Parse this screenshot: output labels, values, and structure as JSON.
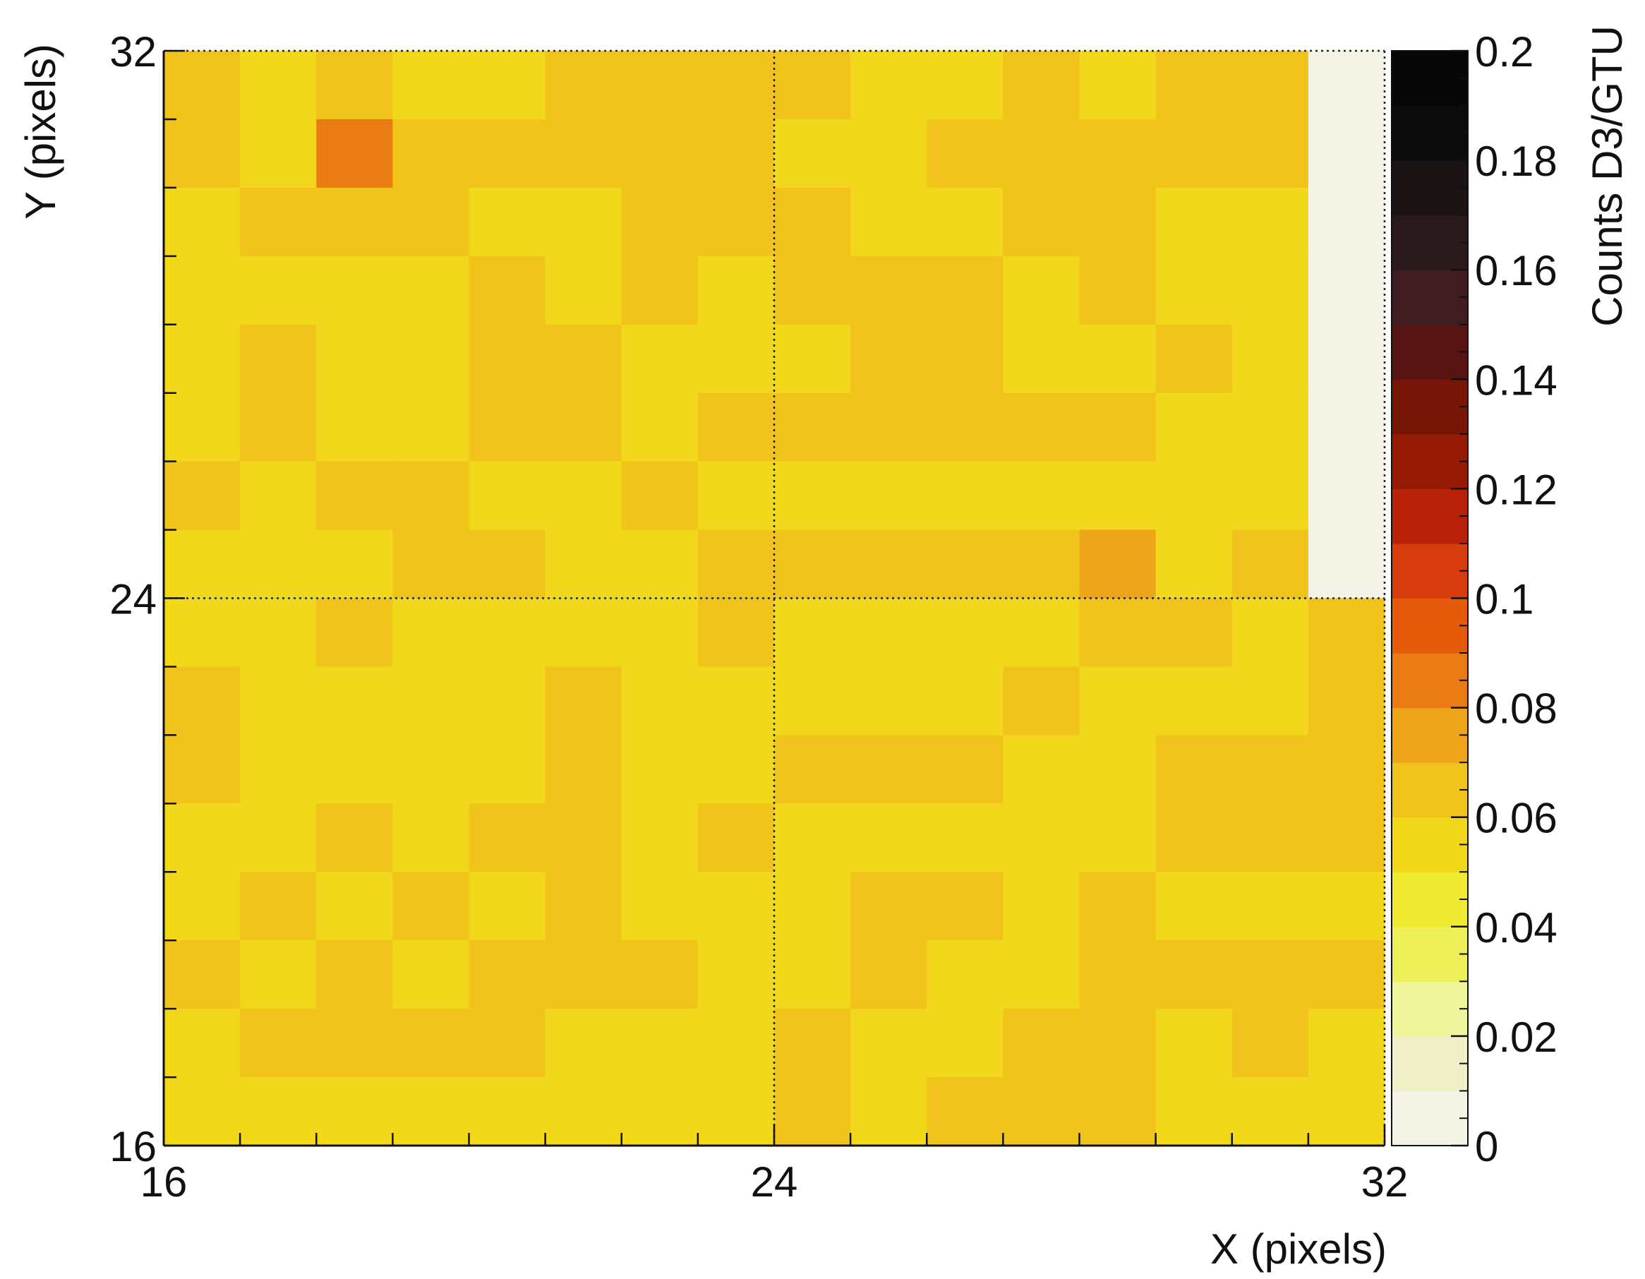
{
  "chart_data": {
    "type": "heatmap",
    "title": "",
    "xlabel": "X (pixels)",
    "ylabel": "Y (pixels)",
    "zlabel": "Counts D3/GTU",
    "xlim": [
      16,
      32
    ],
    "ylim": [
      16,
      32
    ],
    "zlim": [
      0,
      0.2
    ],
    "x_tick_labels": [
      "16",
      "24",
      "32"
    ],
    "y_tick_labels": [
      "16",
      "24",
      "32"
    ],
    "z_tick_labels": [
      "0",
      "0.02",
      "0.04",
      "0.06",
      "0.08",
      "0.1",
      "0.12",
      "0.14",
      "0.16",
      "0.18",
      "0.2"
    ],
    "grid": "dotted lines at 24",
    "colormap": [
      "#f5f3e6",
      "#f0f0c8",
      "#eef59a",
      "#eef05a",
      "#f0ea30",
      "#f2d81a",
      "#f0c41a",
      "#eea51a",
      "#ea7a12",
      "#e65a0c",
      "#d63c0c",
      "#b82208",
      "#961a06",
      "#761606",
      "#561412",
      "#3e1c20",
      "#2a1a1c",
      "#1a1414",
      "#0d0c0c",
      "#060606"
    ],
    "cell_values_rows_top_to_bottom": [
      [
        0.062,
        0.057,
        0.062,
        0.057,
        0.057,
        0.062,
        0.062,
        0.062,
        0.062,
        0.057,
        0.057,
        0.062,
        0.057,
        0.062,
        0.062,
        0.0
      ],
      [
        0.062,
        0.057,
        0.088,
        0.062,
        0.062,
        0.062,
        0.062,
        0.062,
        0.057,
        0.057,
        0.062,
        0.062,
        0.062,
        0.062,
        0.062,
        0.0
      ],
      [
        0.057,
        0.062,
        0.062,
        0.062,
        0.057,
        0.057,
        0.062,
        0.062,
        0.062,
        0.057,
        0.057,
        0.062,
        0.062,
        0.057,
        0.057,
        0.0
      ],
      [
        0.057,
        0.057,
        0.057,
        0.057,
        0.062,
        0.057,
        0.062,
        0.057,
        0.062,
        0.062,
        0.062,
        0.057,
        0.062,
        0.05,
        0.057,
        0.0
      ],
      [
        0.057,
        0.062,
        0.057,
        0.057,
        0.062,
        0.062,
        0.057,
        0.057,
        0.057,
        0.062,
        0.062,
        0.057,
        0.057,
        0.062,
        0.057,
        0.0
      ],
      [
        0.057,
        0.062,
        0.057,
        0.057,
        0.062,
        0.062,
        0.057,
        0.062,
        0.062,
        0.062,
        0.062,
        0.062,
        0.062,
        0.057,
        0.057,
        0.0
      ],
      [
        0.062,
        0.057,
        0.062,
        0.062,
        0.057,
        0.057,
        0.062,
        0.057,
        0.057,
        0.057,
        0.057,
        0.057,
        0.057,
        0.057,
        0.057,
        0.0
      ],
      [
        0.057,
        0.057,
        0.057,
        0.062,
        0.062,
        0.057,
        0.057,
        0.062,
        0.062,
        0.062,
        0.062,
        0.062,
        0.07,
        0.057,
        0.062,
        0.0
      ],
      [
        0.057,
        0.057,
        0.062,
        0.057,
        0.057,
        0.057,
        0.057,
        0.062,
        0.057,
        0.05,
        0.057,
        0.057,
        0.062,
        0.062,
        0.057,
        0.062
      ],
      [
        0.062,
        0.057,
        0.057,
        0.057,
        0.05,
        0.062,
        0.057,
        0.057,
        0.057,
        0.057,
        0.057,
        0.062,
        0.057,
        0.057,
        0.057,
        0.062
      ],
      [
        0.062,
        0.057,
        0.057,
        0.057,
        0.057,
        0.062,
        0.057,
        0.057,
        0.062,
        0.062,
        0.062,
        0.057,
        0.057,
        0.062,
        0.062,
        0.062
      ],
      [
        0.057,
        0.057,
        0.062,
        0.057,
        0.062,
        0.062,
        0.057,
        0.062,
        0.057,
        0.057,
        0.057,
        0.057,
        0.057,
        0.062,
        0.062,
        0.062
      ],
      [
        0.057,
        0.062,
        0.057,
        0.062,
        0.057,
        0.062,
        0.057,
        0.057,
        0.057,
        0.062,
        0.062,
        0.057,
        0.062,
        0.057,
        0.057,
        0.057
      ],
      [
        0.062,
        0.057,
        0.062,
        0.057,
        0.062,
        0.062,
        0.062,
        0.057,
        0.057,
        0.062,
        0.057,
        0.057,
        0.062,
        0.062,
        0.062,
        0.062
      ],
      [
        0.057,
        0.062,
        0.062,
        0.062,
        0.062,
        0.057,
        0.052,
        0.057,
        0.062,
        0.057,
        0.057,
        0.062,
        0.062,
        0.057,
        0.062,
        0.057
      ],
      [
        0.057,
        0.057,
        0.057,
        0.057,
        0.057,
        0.057,
        0.057,
        0.057,
        0.062,
        0.057,
        0.062,
        0.062,
        0.062,
        0.057,
        0.057,
        0.057
      ]
    ]
  }
}
